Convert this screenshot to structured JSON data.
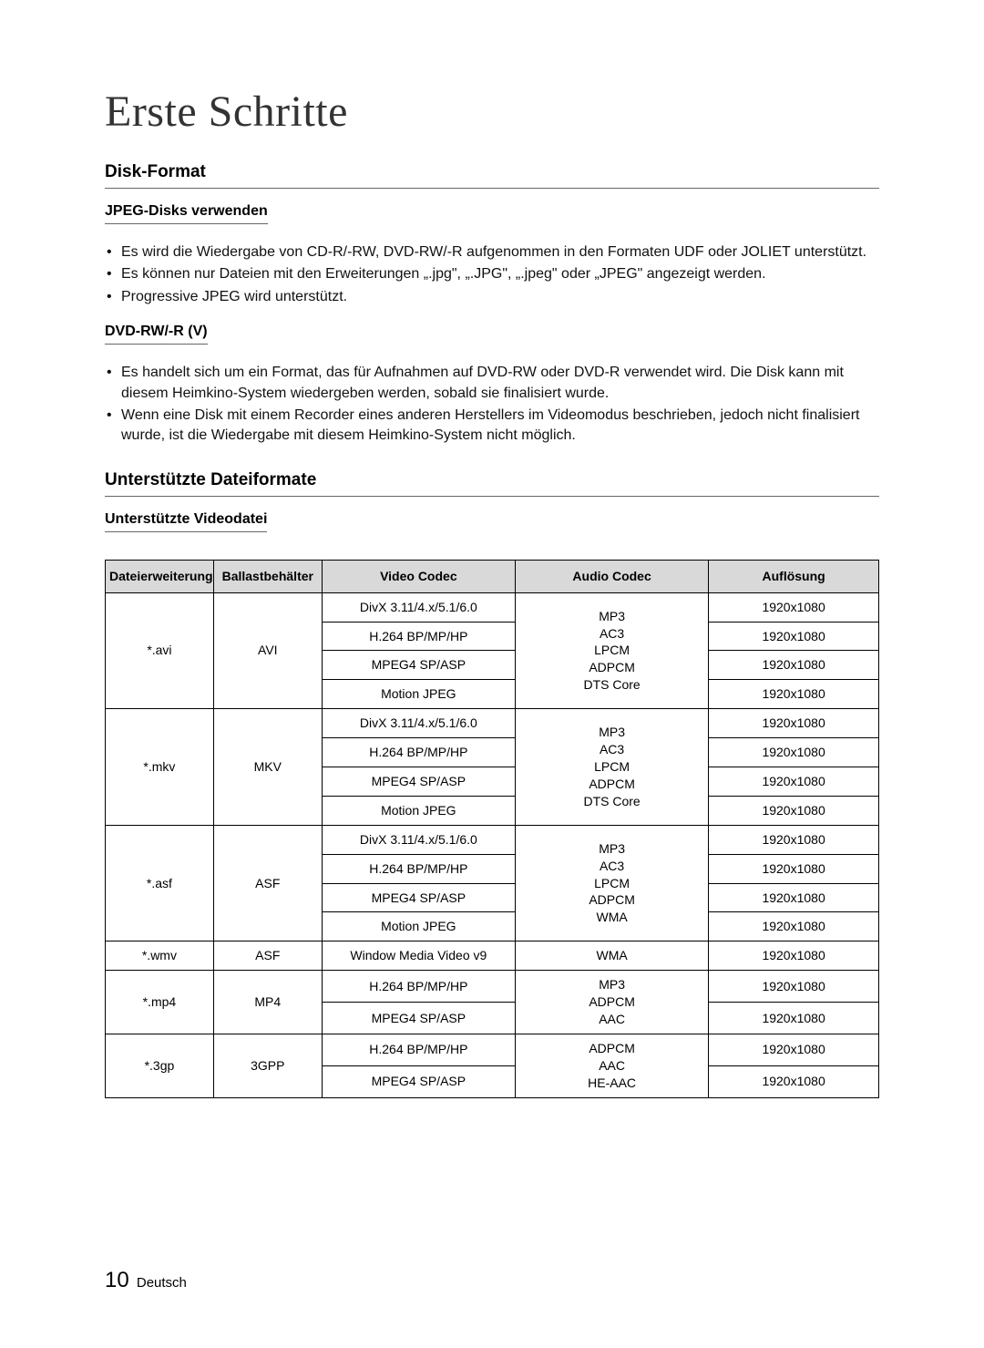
{
  "page": {
    "title": "Erste Schritte",
    "number": "10",
    "language": "Deutsch"
  },
  "disk_format": {
    "heading": "Disk-Format",
    "jpeg": {
      "heading": "JPEG-Disks verwenden",
      "bullets": [
        "Es wird die Wiedergabe von CD-R/-RW, DVD-RW/-R aufgenommen in den Formaten UDF oder JOLIET unterstützt.",
        "Es können nur Dateien mit den Erweiterungen „.jpg\", „.JPG\", „.jpeg\" oder „JPEG\" angezeigt werden.",
        "Progressive JPEG wird unterstützt."
      ]
    },
    "dvdrw": {
      "heading": "DVD-RW/-R (V)",
      "bullets": [
        "Es handelt sich um ein Format, das für Aufnahmen auf DVD-RW oder DVD-R verwendet wird. Die Disk kann mit diesem Heimkino-System wiedergeben werden, sobald sie finalisiert wurde.",
        "Wenn eine Disk mit einem Recorder eines anderen Herstellers im Videomodus beschrieben, jedoch nicht finalisiert wurde, ist die Wiedergabe mit diesem Heimkino-System nicht möglich."
      ]
    }
  },
  "formats": {
    "heading": "Unterstützte Dateiformate",
    "video_heading": "Unterstützte Videodatei",
    "table": {
      "columns": [
        "Dateierweiterung",
        "Ballastbehälter",
        "Video Codec",
        "Audio Codec",
        "Auflösung"
      ],
      "groups": [
        {
          "extension": "*.avi",
          "container": "AVI",
          "audio_lines": [
            "MP3",
            "AC3",
            "LPCM",
            "ADPCM",
            "DTS Core"
          ],
          "video_rows": [
            {
              "codec": "DivX 3.11/4.x/5.1/6.0",
              "resolution": "1920x1080"
            },
            {
              "codec": "H.264 BP/MP/HP",
              "resolution": "1920x1080"
            },
            {
              "codec": "MPEG4 SP/ASP",
              "resolution": "1920x1080"
            },
            {
              "codec": "Motion JPEG",
              "resolution": "1920x1080"
            }
          ]
        },
        {
          "extension": "*.mkv",
          "container": "MKV",
          "audio_lines": [
            "MP3",
            "AC3",
            "LPCM",
            "ADPCM",
            "DTS Core"
          ],
          "video_rows": [
            {
              "codec": "DivX 3.11/4.x/5.1/6.0",
              "resolution": "1920x1080"
            },
            {
              "codec": "H.264 BP/MP/HP",
              "resolution": "1920x1080"
            },
            {
              "codec": "MPEG4 SP/ASP",
              "resolution": "1920x1080"
            },
            {
              "codec": "Motion JPEG",
              "resolution": "1920x1080"
            }
          ]
        },
        {
          "extension": "*.asf",
          "container": "ASF",
          "audio_lines": [
            "MP3",
            "AC3",
            "LPCM",
            "ADPCM",
            "WMA"
          ],
          "video_rows": [
            {
              "codec": "DivX 3.11/4.x/5.1/6.0",
              "resolution": "1920x1080"
            },
            {
              "codec": "H.264 BP/MP/HP",
              "resolution": "1920x1080"
            },
            {
              "codec": "MPEG4 SP/ASP",
              "resolution": "1920x1080"
            },
            {
              "codec": "Motion JPEG",
              "resolution": "1920x1080"
            }
          ]
        },
        {
          "extension": "*.wmv",
          "container": "ASF",
          "audio_lines": [
            "WMA"
          ],
          "video_rows": [
            {
              "codec": "Window Media Video v9",
              "resolution": "1920x1080"
            }
          ]
        },
        {
          "extension": "*.mp4",
          "container": "MP4",
          "audio_lines": [
            "MP3",
            "ADPCM",
            "AAC"
          ],
          "video_rows": [
            {
              "codec": "H.264 BP/MP/HP",
              "resolution": "1920x1080"
            },
            {
              "codec": "MPEG4 SP/ASP",
              "resolution": "1920x1080"
            }
          ]
        },
        {
          "extension": "*.3gp",
          "container": "3GPP",
          "audio_lines": [
            "ADPCM",
            "AAC",
            "HE-AAC"
          ],
          "video_rows": [
            {
              "codec": "H.264 BP/MP/HP",
              "resolution": "1920x1080"
            },
            {
              "codec": "MPEG4 SP/ASP",
              "resolution": "1920x1080"
            }
          ]
        }
      ]
    }
  }
}
